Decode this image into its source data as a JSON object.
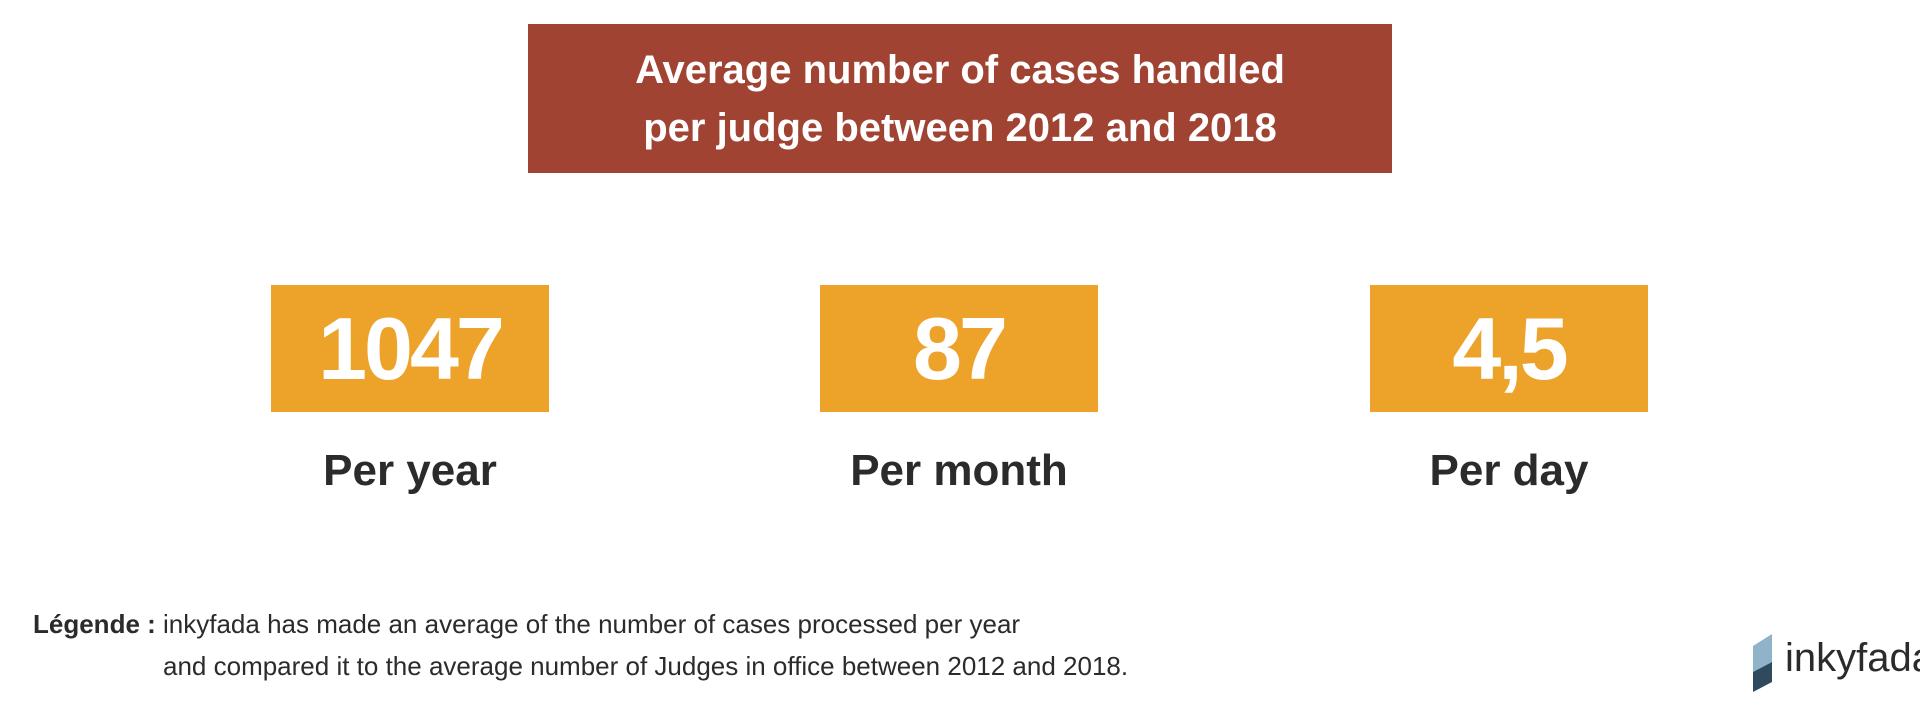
{
  "header": {
    "title_lines": [
      "Average number of cases handled",
      "per judge between 2012 and 2018"
    ]
  },
  "stats": [
    {
      "value": "1047",
      "label": "Per year"
    },
    {
      "value": "87",
      "label": "Per month"
    },
    {
      "value": "4,5",
      "label": "Per day"
    }
  ],
  "legend": {
    "label": "Légende :",
    "lines": [
      "inkyfada has made an average of the number of cases processed per year",
      "and compared it to the average number of Judges in office between 2012 and 2018."
    ]
  },
  "logo": {
    "text": "inkyfada"
  }
}
